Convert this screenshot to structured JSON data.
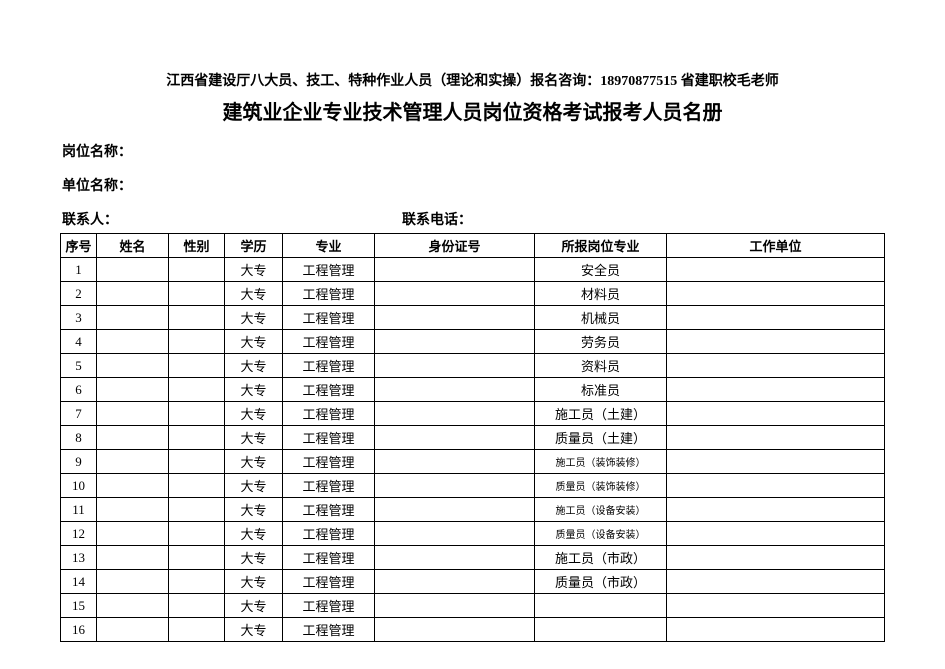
{
  "header": {
    "line1": "江西省建设厅八大员、技工、特种作业人员（理论和实操）报名咨询：18970877515 省建职校毛老师",
    "line2": "建筑业企业专业技术管理人员岗位资格考试报考人员名册"
  },
  "fields": {
    "position_label": "岗位名称：",
    "unit_label": "单位名称：",
    "contact_label": "联系人：",
    "phone_label": "联系电话："
  },
  "table": {
    "columns": [
      "序号",
      "姓名",
      "性别",
      "学历",
      "专业",
      "身份证号",
      "所报岗位专业",
      "工作单位"
    ],
    "rows": [
      {
        "seq": "1",
        "name": "",
        "gender": "",
        "edu": "大专",
        "major": "工程管理",
        "id": "",
        "position": "安全员",
        "small": false,
        "unit": ""
      },
      {
        "seq": "2",
        "name": "",
        "gender": "",
        "edu": "大专",
        "major": "工程管理",
        "id": "",
        "position": "材料员",
        "small": false,
        "unit": ""
      },
      {
        "seq": "3",
        "name": "",
        "gender": "",
        "edu": "大专",
        "major": "工程管理",
        "id": "",
        "position": "机械员",
        "small": false,
        "unit": ""
      },
      {
        "seq": "4",
        "name": "",
        "gender": "",
        "edu": "大专",
        "major": "工程管理",
        "id": "",
        "position": "劳务员",
        "small": false,
        "unit": ""
      },
      {
        "seq": "5",
        "name": "",
        "gender": "",
        "edu": "大专",
        "major": "工程管理",
        "id": "",
        "position": "资料员",
        "small": false,
        "unit": ""
      },
      {
        "seq": "6",
        "name": "",
        "gender": "",
        "edu": "大专",
        "major": "工程管理",
        "id": "",
        "position": "标准员",
        "small": false,
        "unit": ""
      },
      {
        "seq": "7",
        "name": "",
        "gender": "",
        "edu": "大专",
        "major": "工程管理",
        "id": "",
        "position": "施工员（土建）",
        "small": false,
        "unit": ""
      },
      {
        "seq": "8",
        "name": "",
        "gender": "",
        "edu": "大专",
        "major": "工程管理",
        "id": "",
        "position": "质量员（土建）",
        "small": false,
        "unit": ""
      },
      {
        "seq": "9",
        "name": "",
        "gender": "",
        "edu": "大专",
        "major": "工程管理",
        "id": "",
        "position": "施工员（装饰装修）",
        "small": true,
        "unit": ""
      },
      {
        "seq": "10",
        "name": "",
        "gender": "",
        "edu": "大专",
        "major": "工程管理",
        "id": "",
        "position": "质量员（装饰装修）",
        "small": true,
        "unit": ""
      },
      {
        "seq": "11",
        "name": "",
        "gender": "",
        "edu": "大专",
        "major": "工程管理",
        "id": "",
        "position": "施工员（设备安装）",
        "small": true,
        "unit": ""
      },
      {
        "seq": "12",
        "name": "",
        "gender": "",
        "edu": "大专",
        "major": "工程管理",
        "id": "",
        "position": "质量员（设备安装）",
        "small": true,
        "unit": ""
      },
      {
        "seq": "13",
        "name": "",
        "gender": "",
        "edu": "大专",
        "major": "工程管理",
        "id": "",
        "position": "施工员（市政）",
        "small": false,
        "unit": ""
      },
      {
        "seq": "14",
        "name": "",
        "gender": "",
        "edu": "大专",
        "major": "工程管理",
        "id": "",
        "position": "质量员（市政）",
        "small": false,
        "unit": ""
      },
      {
        "seq": "15",
        "name": "",
        "gender": "",
        "edu": "大专",
        "major": "工程管理",
        "id": "",
        "position": "",
        "small": false,
        "unit": ""
      },
      {
        "seq": "16",
        "name": "",
        "gender": "",
        "edu": "大专",
        "major": "工程管理",
        "id": "",
        "position": "",
        "small": false,
        "unit": ""
      }
    ]
  }
}
